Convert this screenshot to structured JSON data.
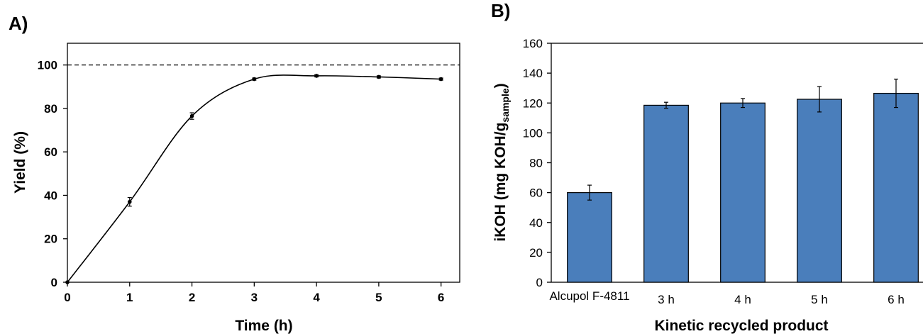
{
  "panels": {
    "a_label": "A)",
    "b_label": "B)"
  },
  "chart_data": [
    {
      "type": "line",
      "title": "",
      "xlabel": "Time (h)",
      "ylabel": "Yield (%)",
      "xlim": [
        0,
        6.3
      ],
      "ylim": [
        0,
        110
      ],
      "xticks": [
        0,
        1,
        2,
        3,
        4,
        5,
        6
      ],
      "yticks": [
        0,
        20,
        40,
        60,
        80,
        100
      ],
      "grid": false,
      "reference_line": {
        "y": 100,
        "style": "dashed"
      },
      "series": [
        {
          "x": [
            0,
            1,
            2,
            3,
            4,
            5,
            6
          ],
          "y": [
            0,
            37,
            76.5,
            93.5,
            95,
            94.5,
            93.5
          ],
          "error": [
            0,
            2,
            1.5,
            0.5,
            0.5,
            0.5,
            0.5
          ],
          "style": "smooth-line-with-markers",
          "color": "#000000"
        }
      ]
    },
    {
      "type": "bar",
      "title": "",
      "xlabel": "Kinetic recycled product",
      "ylabel_main": "iKOH (mg KOH/g",
      "ylabel_sub": "sample",
      "ylabel_close": ")",
      "categories": [
        "Alcupol F-4811",
        "3 h",
        "4 h",
        "5 h",
        "6 h"
      ],
      "values": [
        60,
        118.5,
        120,
        122.5,
        126.5
      ],
      "error": [
        5,
        2,
        3,
        8.5,
        9.5
      ],
      "ylim": [
        0,
        160
      ],
      "yticks": [
        0,
        20,
        40,
        60,
        80,
        100,
        120,
        140,
        160
      ],
      "grid": false,
      "bar_color": "#4a7ebb",
      "bar_edge": "#000000"
    }
  ]
}
